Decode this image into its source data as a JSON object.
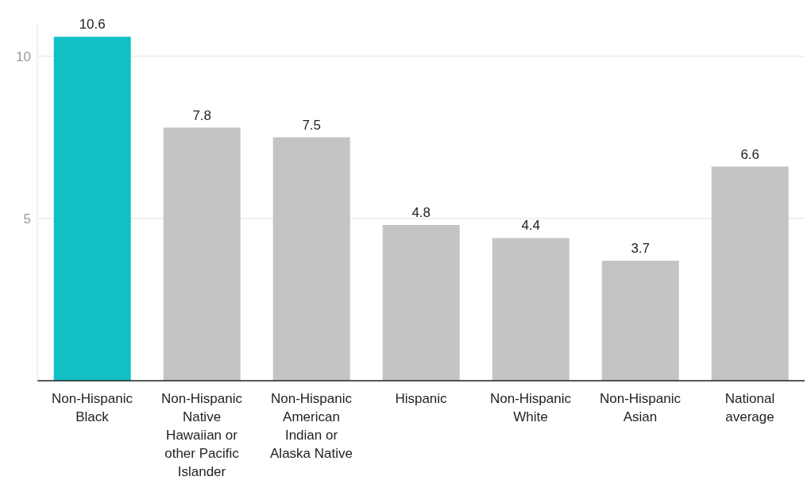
{
  "chart_data": {
    "type": "bar",
    "categories": [
      "Non-Hispanic Black",
      "Non-Hispanic Native Hawaiian or other Pacific Islander",
      "Non-Hispanic American Indian or Alaska Native",
      "Hispanic",
      "Non-Hispanic White",
      "Non-Hispanic Asian",
      "National average"
    ],
    "values": [
      10.6,
      7.8,
      7.5,
      4.8,
      4.4,
      3.7,
      6.6
    ],
    "colors": [
      "#12bfc3",
      "#c4c4c4",
      "#c4c4c4",
      "#c4c4c4",
      "#c4c4c4",
      "#c4c4c4",
      "#c4c4c4"
    ],
    "ylim": [
      0,
      11
    ],
    "yticks": [
      5,
      10
    ],
    "grid": "y",
    "data_labels": true
  }
}
